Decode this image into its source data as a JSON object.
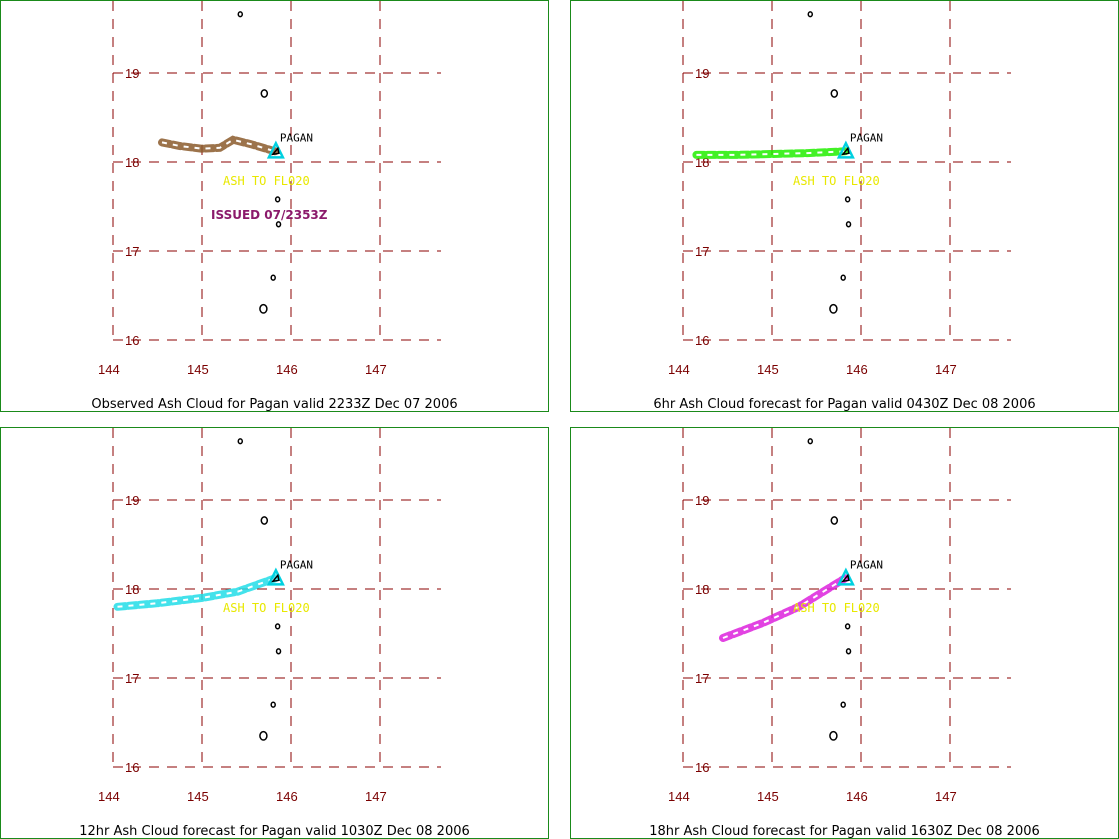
{
  "map": {
    "lat_ticks": [
      "19",
      "18",
      "17",
      "16"
    ],
    "lon_ticks": [
      "144",
      "145",
      "146",
      "147"
    ],
    "volcano_name": "PAGAN",
    "ash_label": "ASH TO FL020",
    "grid_color": "#8b0000",
    "volcano_marker_color": "#00d0e0"
  },
  "panels": [
    {
      "caption": "Observed Ash Cloud for Pagan valid 2233Z Dec 07 2006",
      "cloud_color": "#8b5a2b",
      "issued_label": "ISSUED 07/2353Z",
      "show_ash_label": true,
      "cloud_track": [
        [
          144.55,
          18.22
        ],
        [
          144.75,
          18.18
        ],
        [
          145.0,
          18.15
        ],
        [
          145.2,
          18.16
        ],
        [
          145.35,
          18.25
        ],
        [
          145.55,
          18.2
        ],
        [
          145.75,
          18.14
        ],
        [
          145.82,
          18.12
        ]
      ]
    },
    {
      "caption": "6hr Ash Cloud forecast for Pagan valid 0430Z Dec 08 2006",
      "cloud_color": "#22ee00",
      "issued_label": "",
      "show_ash_label": true,
      "cloud_track": [
        [
          144.15,
          18.08
        ],
        [
          144.6,
          18.08
        ],
        [
          145.0,
          18.09
        ],
        [
          145.4,
          18.1
        ],
        [
          145.82,
          18.12
        ]
      ]
    },
    {
      "caption": "12hr Ash Cloud forecast for Pagan valid 1030Z Dec 08 2006",
      "cloud_color": "#22dde8",
      "issued_label": "",
      "show_ash_label": true,
      "cloud_track": [
        [
          144.05,
          17.8
        ],
        [
          144.5,
          17.84
        ],
        [
          145.0,
          17.9
        ],
        [
          145.4,
          17.97
        ],
        [
          145.82,
          18.12
        ]
      ]
    },
    {
      "caption": "18hr Ash Cloud forecast for Pagan valid 1630Z Dec 08 2006",
      "cloud_color": "#dd22dd",
      "issued_label": "",
      "show_ash_label": true,
      "cloud_track": [
        [
          144.45,
          17.45
        ],
        [
          144.9,
          17.62
        ],
        [
          145.3,
          17.8
        ],
        [
          145.82,
          18.12
        ]
      ]
    }
  ]
}
